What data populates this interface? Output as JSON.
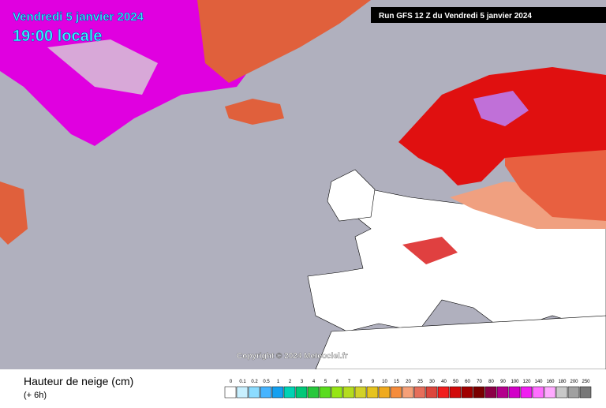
{
  "header": {
    "date": "Vendredi 5 janvier 2024",
    "time": "19:00 locale",
    "run": "Run GFS 12 Z du Vendredi 5 janvier 2024"
  },
  "copyright": "Copyright © 2024 Meteociel.fr",
  "footer": {
    "title": "Hauteur de neige (cm)",
    "lead": "(+ 6h)"
  },
  "legend": [
    {
      "label": "0",
      "color": "#ffffff"
    },
    {
      "label": "0.1",
      "color": "#c8f0ff"
    },
    {
      "label": "0.2",
      "color": "#8cdcff"
    },
    {
      "label": "0.5",
      "color": "#46b4ff"
    },
    {
      "label": "1",
      "color": "#14a0f0"
    },
    {
      "label": "2",
      "color": "#00d2b4"
    },
    {
      "label": "3",
      "color": "#00c878"
    },
    {
      "label": "4",
      "color": "#28c83c"
    },
    {
      "label": "5",
      "color": "#5adc1e"
    },
    {
      "label": "6",
      "color": "#96e614"
    },
    {
      "label": "7",
      "color": "#b4dc1e"
    },
    {
      "label": "8",
      "color": "#d2d228"
    },
    {
      "label": "9",
      "color": "#e6c31e"
    },
    {
      "label": "10",
      "color": "#f0aa1e"
    },
    {
      "label": "15",
      "color": "#f58c3c"
    },
    {
      "label": "20",
      "color": "#f5a078"
    },
    {
      "label": "25",
      "color": "#e66e5a"
    },
    {
      "label": "30",
      "color": "#dc463c"
    },
    {
      "label": "40",
      "color": "#f01e1e"
    },
    {
      "label": "50",
      "color": "#d20a0a"
    },
    {
      "label": "60",
      "color": "#a00000"
    },
    {
      "label": "70",
      "color": "#7a0000"
    },
    {
      "label": "80",
      "color": "#8c0046"
    },
    {
      "label": "90",
      "color": "#b4008c"
    },
    {
      "label": "100",
      "color": "#d200c8"
    },
    {
      "label": "120",
      "color": "#f01ef0"
    },
    {
      "label": "140",
      "color": "#ff6eff"
    },
    {
      "label": "160",
      "color": "#ffaaff"
    },
    {
      "label": "180",
      "color": "#c8c8c8"
    },
    {
      "label": "200",
      "color": "#a0a0a0"
    },
    {
      "label": "250",
      "color": "#787878"
    }
  ]
}
